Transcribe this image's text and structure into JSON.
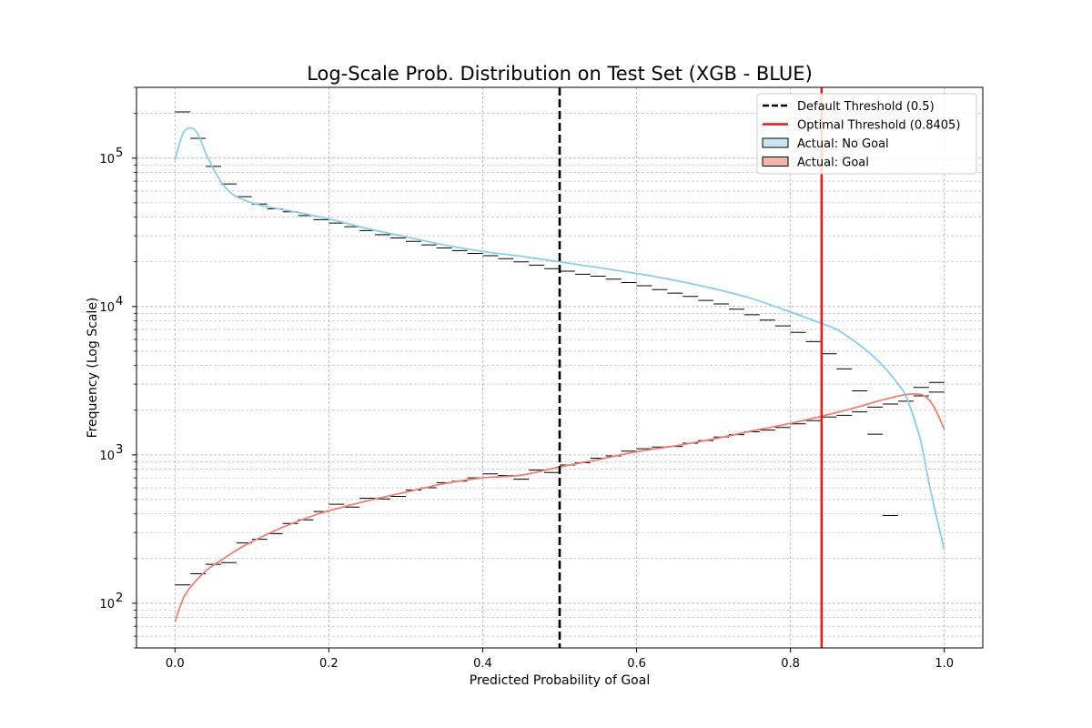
{
  "chart_data": {
    "type": "histogram",
    "title": "Log-Scale Prob. Distribution on Test Set (XGB - BLUE)",
    "xlabel": "Predicted Probability of Goal",
    "ylabel": "Frequency (Log Scale)",
    "xlim": [
      -0.05,
      1.05
    ],
    "ylim": [
      50,
      300000
    ],
    "yscale": "log",
    "grid": true,
    "x_ticks": [
      0.0,
      0.2,
      0.4,
      0.6,
      0.8,
      1.0
    ],
    "x_tick_labels": [
      "0.0",
      "0.2",
      "0.4",
      "0.6",
      "0.8",
      "1.0"
    ],
    "y_ticks": [
      100,
      1000,
      10000,
      100000
    ],
    "y_tick_labels": [
      "10",
      "10",
      "10",
      "10"
    ],
    "y_tick_exponents": [
      "2",
      "3",
      "4",
      "5"
    ],
    "legend_position": "top-right",
    "bins": {
      "start": 0.0,
      "width": 0.02,
      "count": 50
    },
    "series": [
      {
        "name": "Actual: No Goal",
        "color": "#87ceeb",
        "fill": "#c9e6f2",
        "values": [
          205000,
          136000,
          88000,
          67000,
          55000,
          49000,
          45500,
          43500,
          41000,
          38500,
          36500,
          34500,
          32500,
          30500,
          29000,
          27500,
          26000,
          24800,
          23800,
          22800,
          22000,
          21000,
          20000,
          19000,
          18000,
          17300,
          16500,
          16000,
          15300,
          14500,
          13800,
          13000,
          12300,
          11700,
          11000,
          10400,
          9600,
          8800,
          8100,
          7400,
          6700,
          5800,
          4800,
          3800,
          2700,
          1380,
          390,
          null,
          null,
          null
        ],
        "kde": [
          [
            0.0,
            97000
          ],
          [
            0.01,
            145000
          ],
          [
            0.02,
            160000
          ],
          [
            0.03,
            145000
          ],
          [
            0.04,
            108000
          ],
          [
            0.05,
            85000
          ],
          [
            0.06,
            69000
          ],
          [
            0.07,
            60000
          ],
          [
            0.08,
            55000
          ],
          [
            0.1,
            50000
          ],
          [
            0.12,
            47000
          ],
          [
            0.15,
            44000
          ],
          [
            0.2,
            39000
          ],
          [
            0.25,
            33500
          ],
          [
            0.3,
            29500
          ],
          [
            0.35,
            26000
          ],
          [
            0.4,
            23500
          ],
          [
            0.45,
            21800
          ],
          [
            0.5,
            20000
          ],
          [
            0.55,
            18300
          ],
          [
            0.6,
            16700
          ],
          [
            0.65,
            15000
          ],
          [
            0.7,
            13200
          ],
          [
            0.75,
            11300
          ],
          [
            0.8,
            9200
          ],
          [
            0.84,
            7700
          ],
          [
            0.86,
            7000
          ],
          [
            0.88,
            6000
          ],
          [
            0.9,
            5000
          ],
          [
            0.92,
            4000
          ],
          [
            0.94,
            3000
          ],
          [
            0.95,
            2500
          ],
          [
            0.96,
            1800
          ],
          [
            0.97,
            1200
          ],
          [
            0.98,
            650
          ],
          [
            0.99,
            380
          ],
          [
            1.0,
            230
          ]
        ]
      },
      {
        "name": "Actual: Goal",
        "color": "#f07f6f",
        "fill": "#f5b4a8",
        "values": [
          133,
          158,
          183,
          188,
          255,
          270,
          295,
          345,
          365,
          415,
          465,
          445,
          510,
          505,
          525,
          580,
          600,
          650,
          665,
          700,
          745,
          725,
          685,
          790,
          760,
          855,
          885,
          950,
          985,
          1060,
          1100,
          1130,
          1140,
          1200,
          1250,
          1320,
          1370,
          1430,
          1470,
          1530,
          1620,
          1700,
          1800,
          1850,
          1950,
          2100,
          2200,
          2300,
          2500,
          2650
        ],
        "extra_bins_no_goal": [
          2850,
          3080
        ],
        "kde": [
          [
            0.0,
            75
          ],
          [
            0.01,
            105
          ],
          [
            0.02,
            128
          ],
          [
            0.04,
            165
          ],
          [
            0.06,
            195
          ],
          [
            0.08,
            228
          ],
          [
            0.1,
            260
          ],
          [
            0.14,
            325
          ],
          [
            0.18,
            390
          ],
          [
            0.2,
            420
          ],
          [
            0.25,
            490
          ],
          [
            0.3,
            560
          ],
          [
            0.35,
            640
          ],
          [
            0.4,
            700
          ],
          [
            0.45,
            730
          ],
          [
            0.5,
            830
          ],
          [
            0.55,
            930
          ],
          [
            0.6,
            1050
          ],
          [
            0.65,
            1150
          ],
          [
            0.7,
            1280
          ],
          [
            0.75,
            1450
          ],
          [
            0.8,
            1630
          ],
          [
            0.84,
            1820
          ],
          [
            0.88,
            2050
          ],
          [
            0.92,
            2350
          ],
          [
            0.95,
            2550
          ],
          [
            0.97,
            2550
          ],
          [
            0.98,
            2350
          ],
          [
            0.99,
            1950
          ],
          [
            1.0,
            1480
          ]
        ]
      }
    ],
    "thresholds": [
      {
        "name": "Default Threshold (0.5)",
        "x": 0.5,
        "color": "#000000",
        "style": "dashed"
      },
      {
        "name": "Optimal Threshold (0.8405)",
        "x": 0.8405,
        "color": "#e31a1c",
        "style": "solid"
      }
    ]
  }
}
